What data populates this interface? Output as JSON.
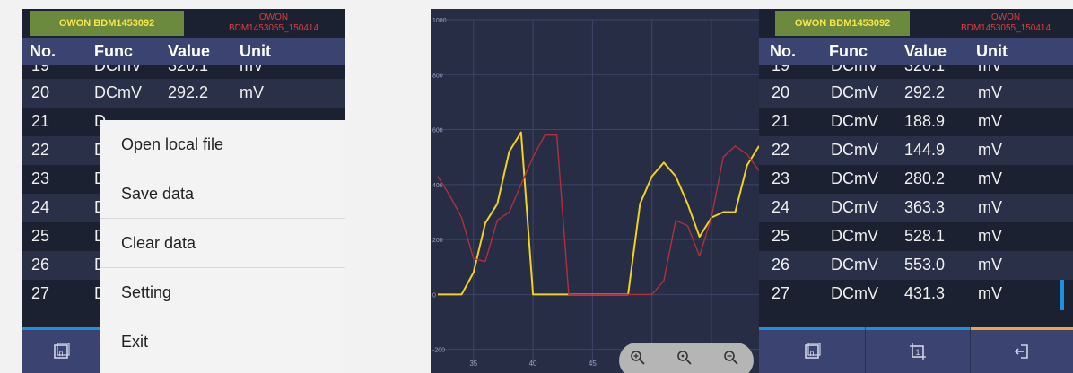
{
  "app": {
    "device_tab": "OWON BDM1453092",
    "file_tab_line1": "OWON",
    "file_tab_line2": "BDM1453055_150414"
  },
  "table": {
    "headers": {
      "no": "No.",
      "func": "Func",
      "value": "Value",
      "unit": "Unit"
    },
    "partial_row": {
      "no": "19",
      "func": "DCmV",
      "value": "320.1",
      "unit": "mV"
    },
    "rows": [
      {
        "no": "20",
        "func": "DCmV",
        "value": "292.2",
        "unit": "mV"
      },
      {
        "no": "21",
        "func": "DCmV",
        "value": "188.9",
        "unit": "mV"
      },
      {
        "no": "22",
        "func": "DCmV",
        "value": "144.9",
        "unit": "mV"
      },
      {
        "no": "23",
        "func": "DCmV",
        "value": "280.2",
        "unit": "mV"
      },
      {
        "no": "24",
        "func": "DCmV",
        "value": "363.3",
        "unit": "mV"
      },
      {
        "no": "25",
        "func": "DCmV",
        "value": "528.1",
        "unit": "mV"
      },
      {
        "no": "26",
        "func": "DCmV",
        "value": "553.0",
        "unit": "mV"
      },
      {
        "no": "27",
        "func": "DCmV",
        "value": "431.3",
        "unit": "mV"
      }
    ],
    "left_visible_func": "D"
  },
  "menu": {
    "items": [
      "Open local file",
      "Save data",
      "Clear data",
      "Setting",
      "Exit"
    ]
  },
  "bottom_bar": {
    "left_icon": "n-icon",
    "mid_icon": "1-icon",
    "right_icon": "exit-icon"
  },
  "chart_data": {
    "type": "line",
    "ylim": [
      -250,
      1000
    ],
    "xlim": [
      32,
      59
    ],
    "y_ticks": [
      "1000",
      "800",
      "600",
      "400",
      "200",
      "0",
      "-200"
    ],
    "y_tick_values": [
      1000,
      800,
      600,
      400,
      200,
      0,
      -200
    ],
    "x_ticks": [
      "35",
      "40",
      "45",
      "50",
      "55"
    ],
    "x_tick_values": [
      35,
      40,
      45,
      50,
      55
    ],
    "series": [
      {
        "color": "#f1d21c",
        "x": [
          32,
          34,
          35,
          36,
          37,
          38,
          39,
          40,
          41,
          42,
          43,
          44,
          45,
          46,
          47,
          48,
          49,
          50,
          51,
          52,
          53,
          54,
          55,
          56,
          57,
          58,
          59
        ],
        "y": [
          0,
          0,
          80,
          260,
          330,
          520,
          590,
          0,
          0,
          0,
          0,
          0,
          0,
          0,
          0,
          0,
          330,
          430,
          480,
          430,
          330,
          210,
          280,
          300,
          300,
          470,
          540
        ]
      },
      {
        "color": "#b0303c",
        "x": [
          32,
          33,
          34,
          35,
          36,
          37,
          38,
          39,
          40,
          41,
          42,
          43,
          44,
          45,
          46,
          47,
          48,
          49,
          50,
          51,
          52,
          53,
          54,
          55,
          56,
          57,
          58,
          59
        ],
        "y": [
          430,
          360,
          280,
          130,
          120,
          270,
          300,
          400,
          500,
          580,
          580,
          0,
          0,
          0,
          0,
          0,
          0,
          0,
          0,
          50,
          270,
          250,
          140,
          280,
          500,
          540,
          510,
          450
        ]
      }
    ]
  },
  "zoom": {
    "zoom_in": "zoom-in-icon",
    "zoom_reset": "zoom-reset-icon",
    "zoom_out": "zoom-out-icon"
  }
}
